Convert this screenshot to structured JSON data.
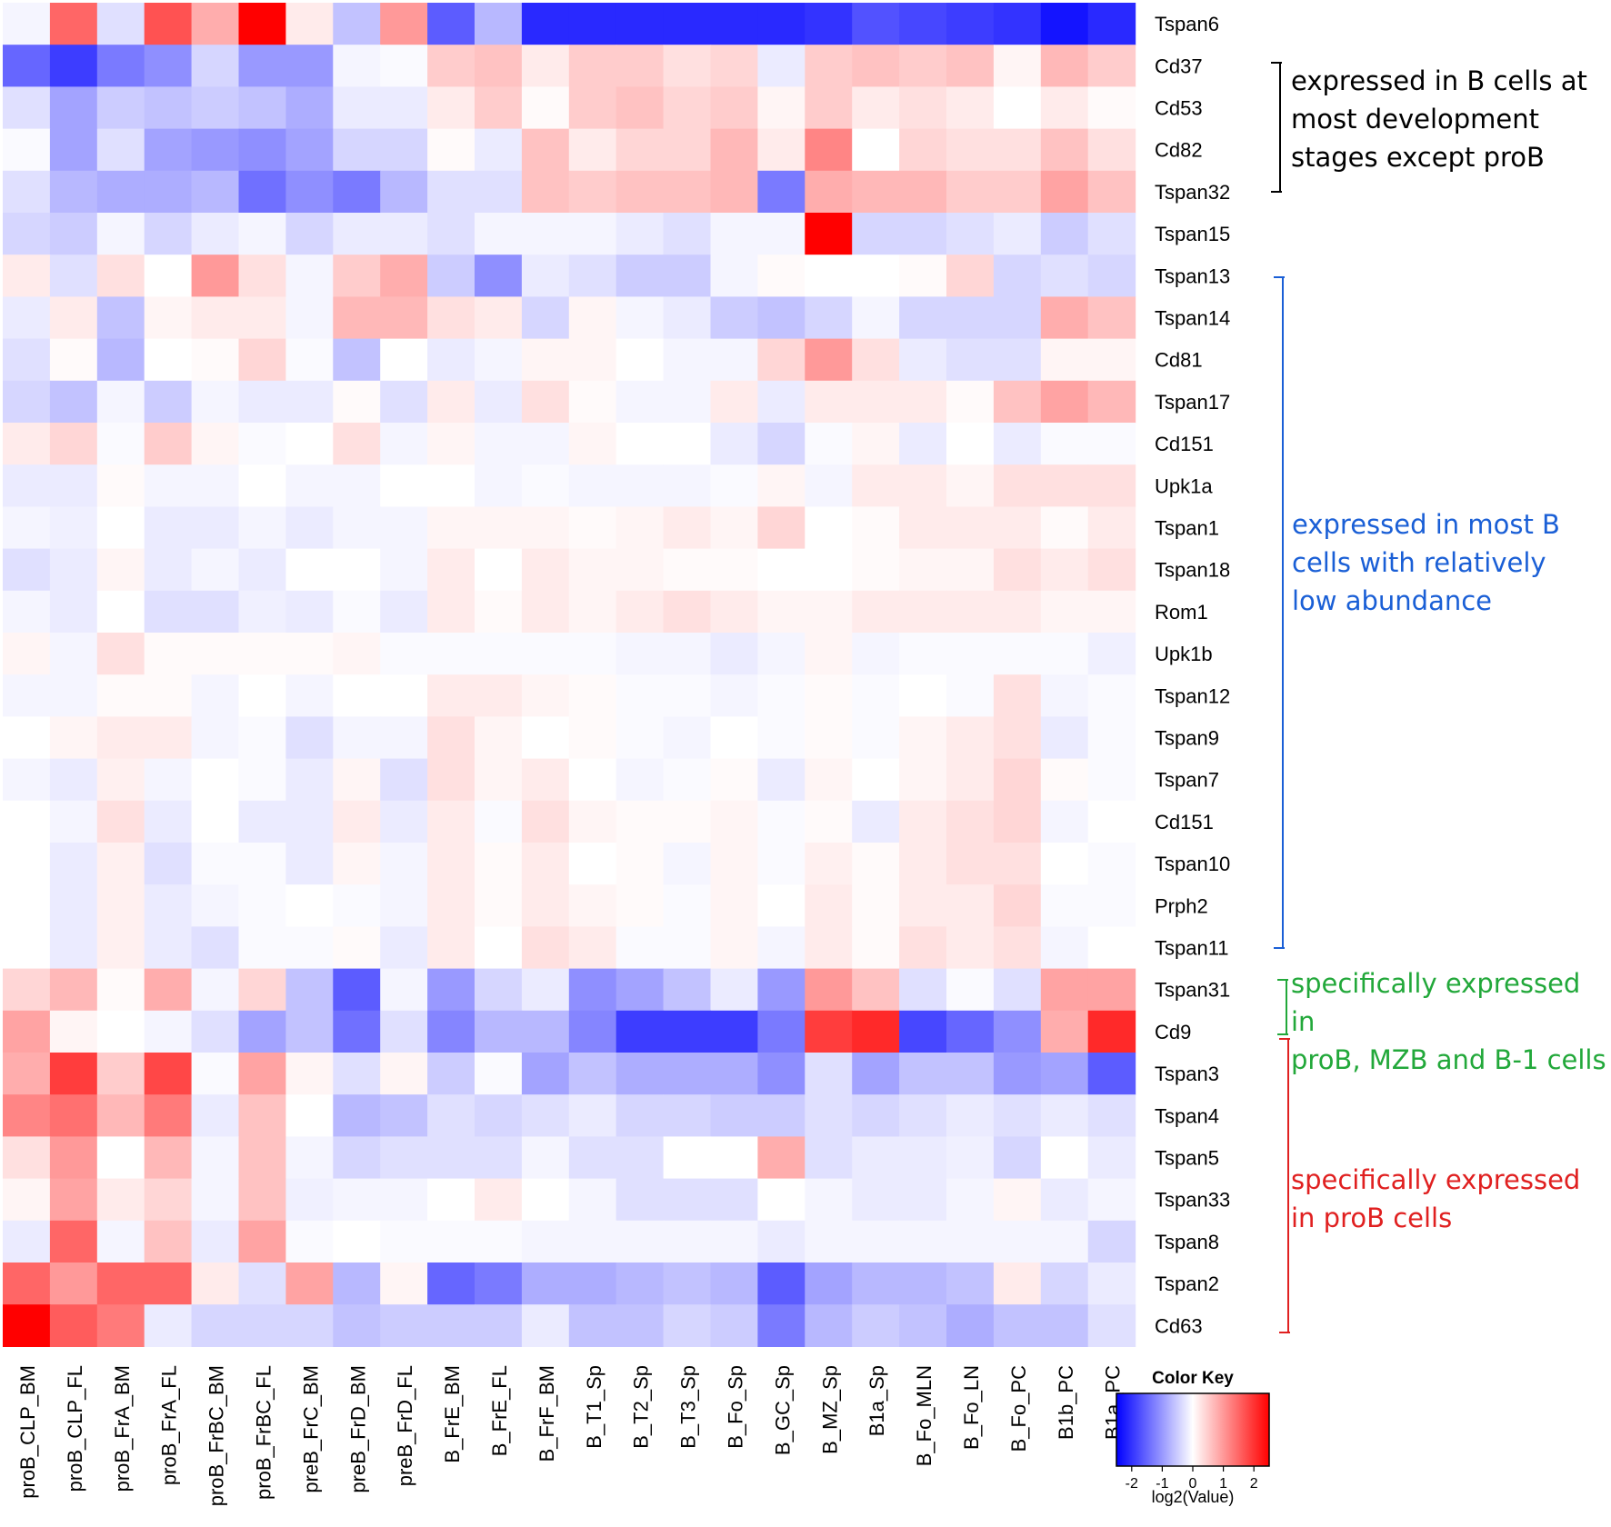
{
  "chart_data": {
    "type": "heatmap",
    "columns": [
      "proB_CLP_BM",
      "proB_CLP_FL",
      "proB_FrA_BM",
      "proB_FrA_FL",
      "proB_FrBC_BM",
      "proB_FrBC_FL",
      "preB_FrC_BM",
      "preB_FrD_BM",
      "preB_FrD_FL",
      "B_FrE_BM",
      "B_FrE_FL",
      "B_FrF_BM",
      "B_T1_Sp",
      "B_T2_Sp",
      "B_T3_Sp",
      "B_Fo_Sp",
      "B_GC_Sp",
      "B_MZ_Sp",
      "B1a_Sp",
      "B_Fo_MLN",
      "B_Fo_LN",
      "B_Fo_PC",
      "B1b_PC",
      "B1a_PC"
    ],
    "rows": [
      "Tspan6",
      "Cd37",
      "Cd53",
      "Cd82",
      "Tspan32",
      "Tspan15",
      "Tspan13",
      "Tspan14",
      "Cd81",
      "Tspan17",
      "Cd151",
      "Upk1a",
      "Tspan1",
      "Tspan18",
      "Rom1",
      "Upk1b",
      "Tspan12",
      "Tspan9",
      "Tspan7",
      "Cd151",
      "Tspan10",
      "Prph2",
      "Tspan11",
      "Tspan31",
      "Cd9",
      "Tspan3",
      "Tspan4",
      "Tspan5",
      "Tspan33",
      "Tspan8",
      "Tspan2",
      "Cd63"
    ],
    "values": [
      [
        -0.1,
        1.5,
        -0.3,
        1.7,
        0.8,
        2.5,
        0.2,
        -0.6,
        1.0,
        -1.6,
        -0.7,
        -2.1,
        -2.1,
        -2.1,
        -2.1,
        -2.1,
        -2.1,
        -2.0,
        -1.7,
        -1.8,
        -1.9,
        -2.0,
        -2.3,
        -2.1
      ],
      [
        -1.5,
        -1.9,
        -1.3,
        -1.1,
        -0.4,
        -1.0,
        -1.0,
        -0.1,
        -0.05,
        0.5,
        0.6,
        0.2,
        0.5,
        0.5,
        0.3,
        0.4,
        -0.2,
        0.5,
        0.6,
        0.5,
        0.6,
        0.1,
        0.7,
        0.5
      ],
      [
        -0.3,
        -0.9,
        -0.5,
        -0.6,
        -0.5,
        -0.6,
        -0.8,
        -0.2,
        -0.2,
        0.2,
        0.5,
        0.05,
        0.5,
        0.6,
        0.4,
        0.5,
        0.1,
        0.5,
        0.2,
        0.3,
        0.2,
        0.0,
        0.2,
        0.05
      ],
      [
        -0.05,
        -0.9,
        -0.3,
        -0.9,
        -1.0,
        -1.1,
        -0.9,
        -0.4,
        -0.4,
        0.05,
        -0.2,
        0.6,
        0.2,
        0.4,
        0.4,
        0.7,
        0.2,
        1.2,
        0.0,
        0.4,
        0.3,
        0.3,
        0.6,
        0.3
      ],
      [
        -0.3,
        -0.7,
        -0.8,
        -0.8,
        -0.7,
        -1.4,
        -1.1,
        -1.3,
        -0.7,
        -0.3,
        -0.3,
        0.6,
        0.5,
        0.6,
        0.6,
        0.7,
        -1.3,
        0.8,
        0.7,
        0.7,
        0.5,
        0.5,
        0.9,
        0.6
      ],
      [
        -0.4,
        -0.5,
        -0.1,
        -0.4,
        -0.2,
        -0.1,
        -0.4,
        -0.2,
        -0.2,
        -0.3,
        -0.1,
        -0.1,
        -0.1,
        -0.2,
        -0.3,
        -0.1,
        -0.1,
        2.5,
        -0.4,
        -0.4,
        -0.3,
        -0.2,
        -0.5,
        -0.3
      ],
      [
        0.2,
        -0.3,
        0.3,
        0.0,
        1.0,
        0.3,
        -0.1,
        0.5,
        0.8,
        -0.5,
        -1.1,
        -0.2,
        -0.3,
        -0.5,
        -0.5,
        -0.1,
        0.05,
        0.0,
        0.0,
        0.05,
        0.4,
        -0.4,
        -0.3,
        -0.4
      ],
      [
        -0.2,
        0.2,
        -0.6,
        0.1,
        0.2,
        0.2,
        -0.1,
        0.7,
        0.7,
        0.3,
        0.2,
        -0.4,
        0.1,
        -0.1,
        -0.2,
        -0.5,
        -0.6,
        -0.4,
        -0.1,
        -0.4,
        -0.4,
        -0.4,
        0.8,
        0.6
      ],
      [
        -0.3,
        0.05,
        -0.7,
        0.0,
        0.05,
        0.4,
        -0.05,
        -0.6,
        0.0,
        -0.2,
        -0.1,
        0.1,
        0.1,
        0.0,
        -0.1,
        -0.1,
        0.4,
        1.0,
        0.3,
        -0.2,
        -0.3,
        -0.3,
        0.1,
        0.1
      ],
      [
        -0.4,
        -0.6,
        -0.1,
        -0.5,
        -0.1,
        -0.2,
        -0.2,
        0.05,
        -0.3,
        0.2,
        -0.2,
        0.3,
        0.05,
        -0.1,
        -0.1,
        0.2,
        -0.2,
        0.2,
        0.2,
        0.2,
        0.05,
        0.6,
        0.9,
        0.7
      ],
      [
        0.2,
        0.4,
        -0.05,
        0.5,
        0.1,
        -0.05,
        0.0,
        0.3,
        -0.1,
        0.1,
        -0.1,
        -0.1,
        0.1,
        0.0,
        0.0,
        -0.2,
        -0.4,
        -0.05,
        0.1,
        -0.2,
        0.0,
        -0.2,
        -0.05,
        -0.05
      ],
      [
        -0.2,
        -0.2,
        0.05,
        -0.1,
        -0.1,
        0.0,
        -0.1,
        -0.1,
        0.0,
        0.0,
        -0.1,
        -0.05,
        -0.1,
        -0.1,
        -0.1,
        -0.05,
        0.1,
        -0.1,
        0.2,
        0.2,
        0.1,
        0.3,
        0.3,
        0.3
      ],
      [
        -0.1,
        -0.15,
        0.0,
        -0.2,
        -0.2,
        -0.1,
        -0.2,
        -0.1,
        -0.1,
        0.1,
        0.1,
        0.1,
        0.05,
        0.1,
        0.2,
        0.1,
        0.4,
        0.0,
        0.05,
        0.2,
        0.2,
        0.2,
        0.05,
        0.2
      ],
      [
        -0.3,
        -0.2,
        0.1,
        -0.2,
        -0.1,
        -0.2,
        0.0,
        0.0,
        -0.1,
        0.2,
        0.0,
        0.2,
        0.1,
        0.1,
        0.05,
        0.05,
        0.0,
        0.0,
        0.05,
        0.1,
        0.1,
        0.3,
        0.2,
        0.3
      ],
      [
        -0.1,
        -0.2,
        0.0,
        -0.3,
        -0.3,
        -0.15,
        -0.2,
        -0.05,
        -0.2,
        0.2,
        0.05,
        0.2,
        0.1,
        0.2,
        0.3,
        0.2,
        0.1,
        0.1,
        0.2,
        0.2,
        0.2,
        0.2,
        0.1,
        0.1
      ],
      [
        0.1,
        -0.1,
        0.3,
        0.05,
        0.05,
        0.05,
        0.05,
        0.1,
        -0.05,
        -0.05,
        -0.05,
        -0.05,
        -0.05,
        -0.1,
        -0.1,
        -0.2,
        -0.1,
        0.1,
        -0.1,
        -0.05,
        -0.05,
        -0.05,
        -0.05,
        -0.15
      ],
      [
        -0.1,
        -0.1,
        0.05,
        0.05,
        -0.1,
        0.0,
        -0.1,
        0.0,
        0.0,
        0.2,
        0.2,
        0.1,
        0.05,
        -0.05,
        -0.05,
        -0.1,
        -0.05,
        0.05,
        -0.05,
        0.0,
        -0.05,
        0.3,
        -0.1,
        -0.05
      ],
      [
        0.0,
        0.1,
        0.2,
        0.2,
        -0.1,
        -0.05,
        -0.3,
        -0.1,
        -0.1,
        0.3,
        0.1,
        0.0,
        0.05,
        -0.05,
        -0.1,
        0.0,
        -0.05,
        0.05,
        -0.05,
        0.1,
        0.2,
        0.3,
        -0.2,
        -0.05
      ],
      [
        -0.1,
        -0.2,
        0.15,
        -0.1,
        0.0,
        -0.05,
        -0.2,
        0.1,
        -0.3,
        0.3,
        0.1,
        0.2,
        0.0,
        -0.1,
        -0.05,
        0.05,
        -0.2,
        0.1,
        0.0,
        0.1,
        0.2,
        0.4,
        0.05,
        -0.05
      ],
      [
        0.0,
        -0.1,
        0.3,
        -0.2,
        0.0,
        -0.2,
        -0.2,
        0.2,
        -0.2,
        0.2,
        -0.05,
        0.3,
        0.1,
        0.05,
        0.05,
        0.1,
        -0.05,
        0.05,
        -0.2,
        0.2,
        0.3,
        0.4,
        -0.1,
        0.0
      ],
      [
        0.0,
        -0.2,
        0.15,
        -0.3,
        -0.05,
        -0.05,
        -0.2,
        0.1,
        -0.1,
        0.2,
        0.05,
        0.2,
        0.0,
        0.05,
        -0.1,
        0.1,
        -0.05,
        0.15,
        0.05,
        0.2,
        0.3,
        0.3,
        0.0,
        -0.05
      ],
      [
        0.0,
        -0.2,
        0.15,
        -0.2,
        -0.1,
        -0.05,
        0.0,
        -0.05,
        -0.1,
        0.2,
        0.05,
        0.2,
        0.1,
        0.05,
        -0.05,
        0.1,
        0.0,
        0.2,
        0.05,
        0.2,
        0.2,
        0.4,
        -0.05,
        -0.05
      ],
      [
        0.0,
        -0.2,
        0.15,
        -0.2,
        -0.3,
        -0.05,
        -0.05,
        0.05,
        -0.2,
        0.2,
        0.0,
        0.3,
        0.2,
        -0.05,
        -0.05,
        0.1,
        -0.1,
        0.2,
        0.05,
        0.3,
        0.2,
        0.3,
        -0.1,
        0.0
      ],
      [
        0.4,
        0.7,
        0.05,
        0.8,
        -0.1,
        0.4,
        -0.6,
        -1.6,
        -0.1,
        -1.0,
        -0.4,
        -0.2,
        -1.1,
        -0.9,
        -0.6,
        -0.2,
        -1.0,
        1.0,
        0.6,
        -0.3,
        -0.05,
        -0.3,
        0.9,
        0.9
      ],
      [
        0.9,
        0.1,
        0.0,
        -0.1,
        -0.3,
        -0.9,
        -0.6,
        -1.4,
        -0.3,
        -1.2,
        -0.7,
        -0.7,
        -1.2,
        -1.9,
        -1.9,
        -1.9,
        -1.3,
        1.9,
        2.1,
        -1.8,
        -1.5,
        -1.1,
        0.8,
        2.1
      ],
      [
        0.8,
        1.9,
        0.5,
        1.8,
        -0.05,
        0.9,
        0.1,
        -0.3,
        0.1,
        -0.5,
        -0.05,
        -0.9,
        -0.6,
        -0.8,
        -0.8,
        -0.8,
        -1.1,
        -0.3,
        -0.9,
        -0.6,
        -0.6,
        -1.0,
        -0.9,
        -1.6
      ],
      [
        1.2,
        1.4,
        0.7,
        1.3,
        -0.2,
        0.6,
        0.0,
        -0.7,
        -0.6,
        -0.3,
        -0.4,
        -0.3,
        -0.2,
        -0.4,
        -0.4,
        -0.5,
        -0.5,
        -0.3,
        -0.4,
        -0.3,
        -0.2,
        -0.3,
        -0.2,
        -0.3
      ],
      [
        0.3,
        1.0,
        0.0,
        0.7,
        -0.1,
        0.6,
        -0.1,
        -0.4,
        -0.3,
        -0.3,
        -0.3,
        -0.1,
        -0.3,
        -0.3,
        0.0,
        0.0,
        0.8,
        -0.3,
        -0.2,
        -0.2,
        -0.15,
        -0.4,
        0.0,
        -0.2
      ],
      [
        0.1,
        0.9,
        0.2,
        0.4,
        -0.1,
        0.6,
        -0.15,
        -0.1,
        -0.1,
        0.0,
        0.2,
        0.0,
        -0.1,
        -0.3,
        -0.3,
        -0.3,
        0.0,
        -0.1,
        -0.2,
        -0.2,
        -0.1,
        0.1,
        -0.2,
        -0.1
      ],
      [
        -0.2,
        1.5,
        -0.1,
        0.6,
        -0.2,
        0.9,
        -0.05,
        0.0,
        -0.05,
        -0.05,
        -0.05,
        -0.1,
        -0.1,
        -0.1,
        -0.1,
        -0.1,
        -0.2,
        -0.1,
        -0.1,
        -0.1,
        -0.1,
        -0.1,
        -0.1,
        -0.4
      ],
      [
        1.5,
        1.0,
        1.5,
        1.5,
        0.2,
        -0.3,
        0.9,
        -0.7,
        0.1,
        -1.5,
        -1.3,
        -0.8,
        -0.8,
        -0.7,
        -0.6,
        -0.7,
        -1.6,
        -0.9,
        -0.7,
        -0.7,
        -0.6,
        0.2,
        -0.4,
        -0.2
      ],
      [
        2.5,
        1.6,
        1.3,
        -0.2,
        -0.4,
        -0.4,
        -0.4,
        -0.6,
        -0.5,
        -0.5,
        -0.5,
        -0.2,
        -0.6,
        -0.6,
        -0.4,
        -0.5,
        -1.3,
        -0.7,
        -0.5,
        -0.6,
        -0.8,
        -0.6,
        -0.6,
        -0.3
      ]
    ],
    "color_scale": {
      "min": -2.5,
      "max": 2.5,
      "low_color": "#0000ff",
      "mid_color": "#ffffff",
      "high_color": "#ff0000"
    },
    "color_key": {
      "title": "Color Key",
      "xlabel": "log2(Value)",
      "ticks": [
        "-2",
        "-1",
        "0",
        "1",
        "2"
      ]
    }
  },
  "annotations": [
    {
      "text": "expressed in B cells at\nmost development\nstages except proB",
      "color": "#000000"
    },
    {
      "text": "expressed in most B\ncells with relatively\nlow  abundance",
      "color": "#1a5fd6"
    },
    {
      "text": "specifically expressed in\nproB, MZB and B-1 cells",
      "color": "#22a83a"
    },
    {
      "text": "specifically expressed\nin proB cells",
      "color": "#e02020"
    }
  ]
}
